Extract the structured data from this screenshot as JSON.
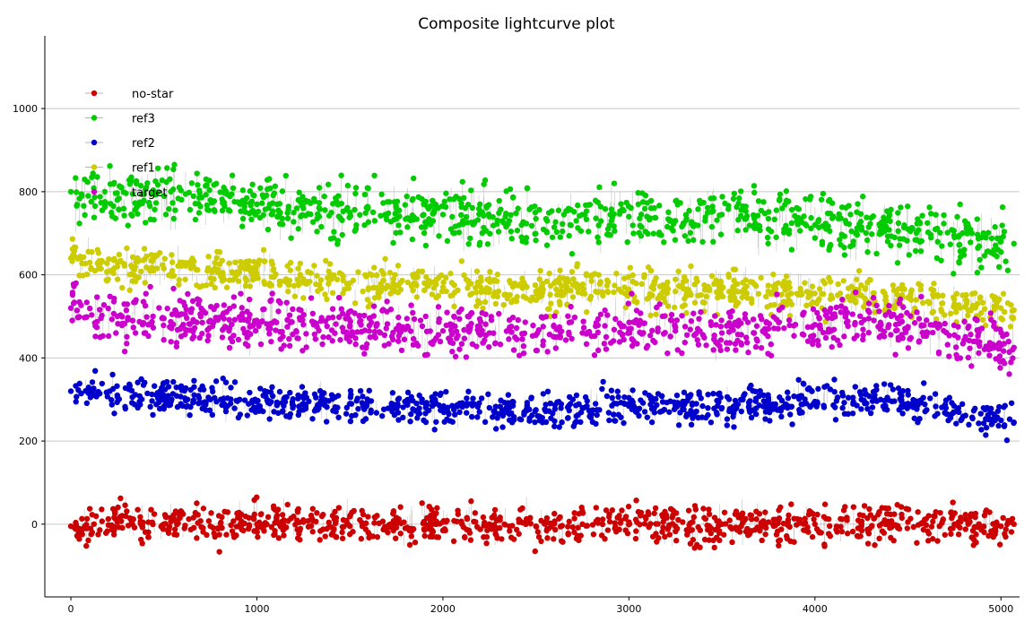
{
  "chart_data": {
    "type": "scatter",
    "title": "Composite lightcurve plot",
    "xlabel": "",
    "ylabel": "",
    "xlim": [
      -140,
      5100
    ],
    "ylim": [
      -175,
      1175
    ],
    "x_ticks": [
      0,
      1000,
      2000,
      3000,
      4000,
      5000
    ],
    "y_ticks": [
      0,
      200,
      400,
      600,
      800,
      1000
    ],
    "grid": "horizontal",
    "legend_position": "top-left",
    "markers_connected_by_vertical_lines": true,
    "series": [
      {
        "name": "no-star",
        "color": "#cc0000",
        "x": [
          0,
          250,
          500,
          750,
          1000,
          1250,
          1500,
          1750,
          2000,
          2250,
          2500,
          2750,
          3000,
          3250,
          3500,
          3750,
          4000,
          4250,
          4500,
          4750,
          5000,
          5070
        ],
        "y": [
          -5,
          5,
          0,
          -5,
          0,
          5,
          -5,
          0,
          5,
          0,
          -5,
          0,
          5,
          -5,
          0,
          5,
          0,
          -5,
          5,
          0,
          -5,
          0
        ],
        "spread": 50
      },
      {
        "name": "ref3",
        "color": "#00cc00",
        "x": [
          0,
          250,
          500,
          750,
          1000,
          1250,
          1500,
          1750,
          2000,
          2250,
          2500,
          2750,
          3000,
          3250,
          3500,
          3750,
          4000,
          4250,
          4500,
          4750,
          5000,
          5070
        ],
        "y": [
          800,
          780,
          790,
          780,
          770,
          760,
          750,
          760,
          745,
          740,
          735,
          745,
          740,
          730,
          745,
          735,
          720,
          715,
          710,
          690,
          680,
          675
        ],
        "spread": 70
      },
      {
        "name": "ref2",
        "color": "#0000cc",
        "x": [
          0,
          250,
          500,
          750,
          1000,
          1250,
          1500,
          1750,
          2000,
          2250,
          2500,
          2750,
          3000,
          3250,
          3500,
          3750,
          4000,
          4250,
          4500,
          4750,
          5000,
          5070
        ],
        "y": [
          320,
          310,
          305,
          300,
          295,
          290,
          290,
          285,
          275,
          280,
          275,
          280,
          290,
          285,
          280,
          290,
          295,
          300,
          290,
          270,
          250,
          245
        ],
        "spread": 45
      },
      {
        "name": "ref1",
        "color": "#cccc00",
        "x": [
          0,
          250,
          500,
          750,
          1000,
          1250,
          1500,
          1750,
          2000,
          2250,
          2500,
          2750,
          3000,
          3250,
          3500,
          3750,
          4000,
          4250,
          4500,
          4750,
          5000,
          5070
        ],
        "y": [
          640,
          620,
          615,
          610,
          600,
          590,
          580,
          575,
          570,
          565,
          560,
          570,
          565,
          560,
          570,
          560,
          555,
          550,
          545,
          530,
          520,
          515
        ],
        "spread": 50
      },
      {
        "name": "target",
        "color": "#cc00cc",
        "x": [
          0,
          250,
          500,
          750,
          1000,
          1250,
          1500,
          1750,
          2000,
          2250,
          2500,
          2750,
          3000,
          3250,
          3500,
          3750,
          4000,
          4250,
          4500,
          4750,
          5000,
          5070
        ],
        "y": [
          520,
          500,
          495,
          490,
          485,
          480,
          475,
          470,
          465,
          460,
          455,
          460,
          470,
          465,
          460,
          470,
          480,
          485,
          475,
          455,
          430,
          425
        ],
        "spread": 60
      }
    ]
  }
}
